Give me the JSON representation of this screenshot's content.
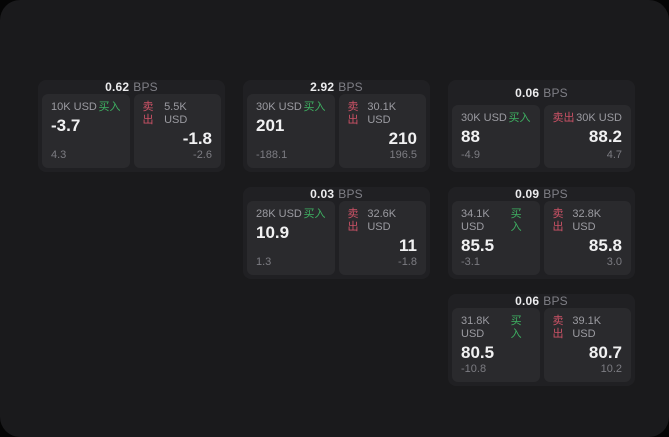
{
  "labels": {
    "bps": "BPS",
    "buy": "买入",
    "sell": "卖出"
  },
  "colors": {
    "panel_bg": "#1a1a1c",
    "card_bg": "#202023",
    "pane_bg": "#2a2a2d",
    "buy_green": "#3eb162",
    "sell_red": "#cc5266"
  },
  "cards": [
    {
      "bps": "0.62",
      "buy": {
        "amount": "10K USD",
        "value": "-3.7",
        "sub": "4.3"
      },
      "sell": {
        "amount": "5.5K USD",
        "value": "-1.8",
        "sub": "-2.6"
      }
    },
    {
      "bps": "2.92",
      "buy": {
        "amount": "30K USD",
        "value": "201",
        "sub": "-188.1"
      },
      "sell": {
        "amount": "30.1K USD",
        "value": "210",
        "sub": "196.5"
      }
    },
    {
      "bps": "0.06",
      "buy": {
        "amount": "30K USD",
        "value": "88",
        "sub": "-4.9"
      },
      "sell": {
        "amount": "30K USD",
        "value": "88.2",
        "sub": "4.7"
      }
    },
    {
      "bps": "0.03",
      "buy": {
        "amount": "28K USD",
        "value": "10.9",
        "sub": "1.3"
      },
      "sell": {
        "amount": "32.6K USD",
        "value": "11",
        "sub": "-1.8"
      }
    },
    {
      "bps": "0.09",
      "buy": {
        "amount": "34.1K USD",
        "value": "85.5",
        "sub": "-3.1"
      },
      "sell": {
        "amount": "32.8K USD",
        "value": "85.8",
        "sub": "3.0"
      }
    },
    {
      "bps": "0.06",
      "buy": {
        "amount": "31.8K USD",
        "value": "80.5",
        "sub": "-10.8"
      },
      "sell": {
        "amount": "39.1K USD",
        "value": "80.7",
        "sub": "10.2"
      }
    }
  ]
}
